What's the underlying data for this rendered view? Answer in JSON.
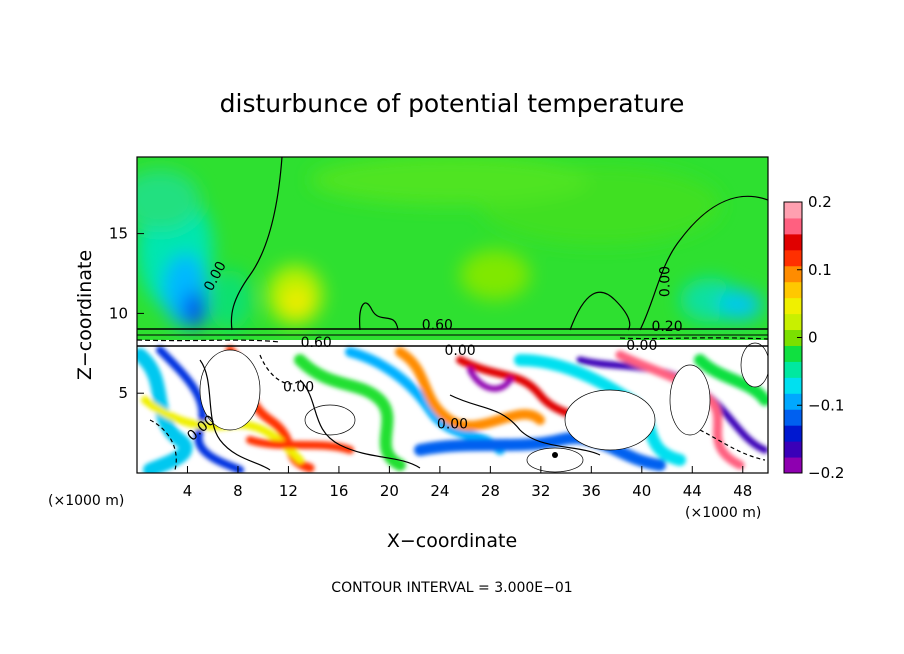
{
  "chart_data": {
    "type": "heatmap",
    "title": "disturbunce of potential temperature",
    "xlabel": "X−coordinate",
    "ylabel": "Z−coordinate",
    "x_unit_left": "(×1000 m)",
    "x_unit_right": "(×1000 m)",
    "xlim": [
      0,
      50
    ],
    "ylim": [
      0,
      19.8
    ],
    "x_ticks": [
      4,
      8,
      12,
      16,
      20,
      24,
      28,
      32,
      36,
      40,
      44,
      48
    ],
    "y_ticks": [
      5,
      10,
      15
    ],
    "colorbar": {
      "range": [
        -0.2,
        0.2
      ],
      "ticks": [
        {
          "value": 0.2,
          "label": "0.2"
        },
        {
          "value": 0.1,
          "label": "0.1"
        },
        {
          "value": 0,
          "label": "0"
        },
        {
          "value": -0.1,
          "label": "−0.1"
        },
        {
          "value": -0.2,
          "label": "−0.2"
        }
      ],
      "colors": [
        "#8e00b0",
        "#3a00b8",
        "#0018d0",
        "#0060f0",
        "#00a8ff",
        "#00e0f0",
        "#00e8a0",
        "#10e040",
        "#7be000",
        "#c8f000",
        "#f0f000",
        "#ffc800",
        "#ff8c00",
        "#ff3000",
        "#e00000",
        "#ff6080",
        "#ffa0b0"
      ]
    },
    "contour_labels": [
      {
        "text": "0.00",
        "x": 6.5,
        "y": 12.2,
        "rotate": -62
      },
      {
        "text": "0.00",
        "x": 42.2,
        "y": 12.0,
        "rotate": -90
      },
      {
        "text": "0.60",
        "x": 23.8,
        "y": 9.0,
        "rotate": 0
      },
      {
        "text": "0.60",
        "x": 14.2,
        "y": 7.9,
        "rotate": 0
      },
      {
        "text": "0.00",
        "x": 25.6,
        "y": 7.4,
        "rotate": 0
      },
      {
        "text": "0.00",
        "x": 40.0,
        "y": 7.7,
        "rotate": 0
      },
      {
        "text": "0.20",
        "x": 42.0,
        "y": 8.9,
        "rotate": 0
      },
      {
        "text": "0.00",
        "x": 12.8,
        "y": 5.1,
        "rotate": 0
      },
      {
        "text": "0.00",
        "x": 25.0,
        "y": 2.8,
        "rotate": 0
      },
      {
        "text": "0.00",
        "x": 5.3,
        "y": 2.6,
        "rotate": -40
      }
    ],
    "contour_interval_text": "CONTOUR INTERVAL = 3.000E−01"
  }
}
